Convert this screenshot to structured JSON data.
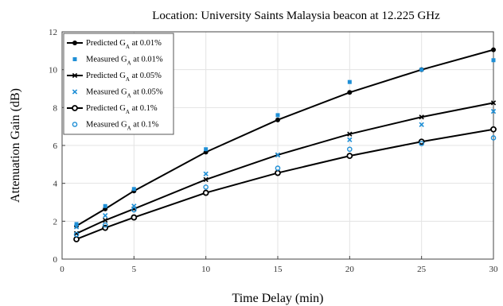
{
  "chart_data": {
    "type": "line",
    "title": "Location: University Saints Malaysia beacon at 12.225 GHz",
    "xlabel": "Time Delay (min)",
    "ylabel": "Attenuation Gain (dB)",
    "xlim": [
      0,
      30
    ],
    "ylim": [
      0,
      12
    ],
    "xticks": [
      0,
      5,
      10,
      15,
      20,
      25,
      30
    ],
    "yticks": [
      0,
      2,
      4,
      6,
      8,
      10,
      12
    ],
    "grid": true,
    "legend_position": "top-left",
    "x": [
      1,
      3,
      5,
      10,
      15,
      20,
      25,
      30
    ],
    "series": [
      {
        "name": "Predicted G",
        "sub": "A",
        "suffix": " at 0.01%",
        "kind": "line",
        "marker": "dot",
        "color": "#000000",
        "values": [
          1.75,
          2.65,
          3.6,
          5.65,
          7.35,
          8.8,
          10.0,
          11.05
        ]
      },
      {
        "name": "Measured G",
        "sub": "A",
        "suffix": " at 0.01%",
        "kind": "points",
        "marker": "square",
        "color": "#1f8fd6",
        "values": [
          1.85,
          2.8,
          3.7,
          5.8,
          7.6,
          9.35,
          10.0,
          10.5
        ]
      },
      {
        "name": "Predicted G",
        "sub": "A",
        "suffix": " at 0.05%",
        "kind": "line",
        "marker": "x",
        "color": "#000000",
        "values": [
          1.35,
          2.05,
          2.65,
          4.2,
          5.5,
          6.6,
          7.5,
          8.25
        ]
      },
      {
        "name": "Measured G",
        "sub": "A",
        "suffix": " at 0.05%",
        "kind": "points",
        "marker": "x",
        "color": "#1f8fd6",
        "values": [
          1.7,
          2.3,
          2.8,
          4.5,
          5.5,
          6.3,
          7.1,
          7.8
        ]
      },
      {
        "name": "Predicted G",
        "sub": "A",
        "suffix": " at 0.1%",
        "kind": "line",
        "marker": "circle",
        "color": "#000000",
        "values": [
          1.05,
          1.65,
          2.2,
          3.5,
          4.55,
          5.45,
          6.2,
          6.85
        ]
      },
      {
        "name": "Measured G",
        "sub": "A",
        "suffix": " at 0.1%",
        "kind": "points",
        "marker": "ocircle",
        "color": "#1f8fd6",
        "values": [
          1.3,
          1.8,
          2.6,
          3.8,
          4.8,
          5.8,
          6.1,
          6.4
        ]
      }
    ]
  }
}
